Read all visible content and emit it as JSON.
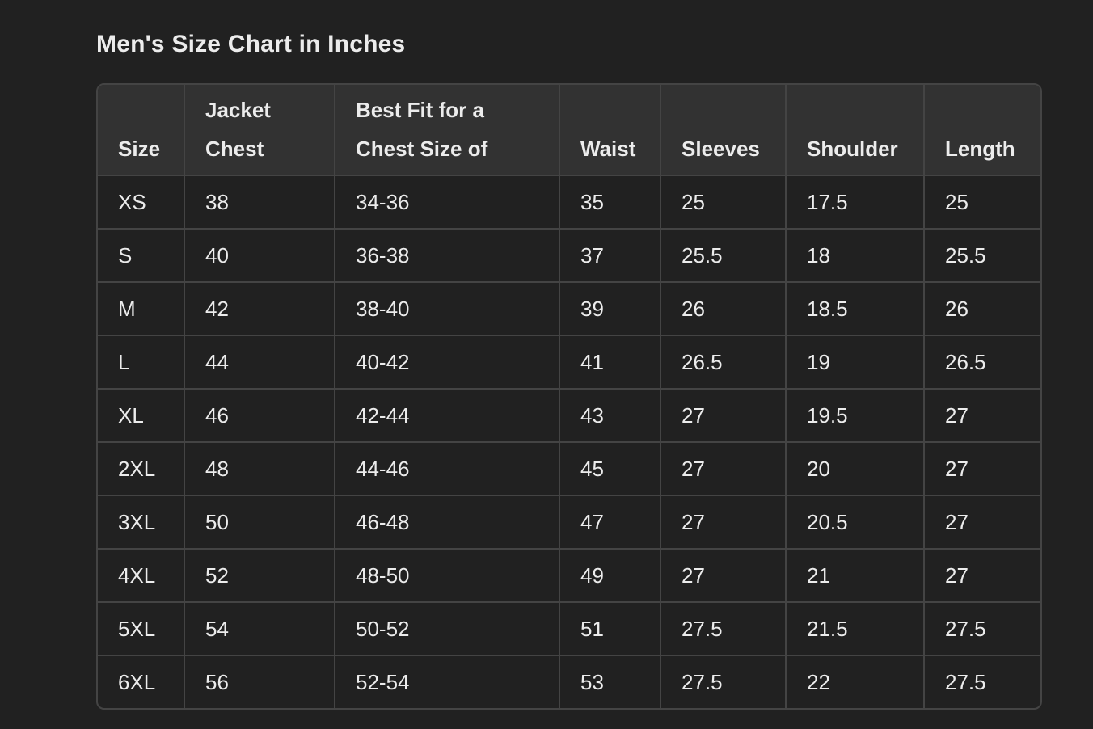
{
  "title": "Men's Size Chart in Inches",
  "headers": [
    [
      "",
      "Size"
    ],
    [
      "Jacket",
      "Chest"
    ],
    [
      "Best Fit for a",
      "Chest Size of"
    ],
    [
      "",
      "Waist"
    ],
    [
      "",
      "Sleeves"
    ],
    [
      "",
      "Shoulder"
    ],
    [
      "",
      "Length"
    ]
  ],
  "rows": [
    [
      "XS",
      "38",
      "34-36",
      "35",
      "25",
      "17.5",
      "25"
    ],
    [
      "S",
      "40",
      "36-38",
      "37",
      "25.5",
      "18",
      "25.5"
    ],
    [
      "M",
      "42",
      "38-40",
      "39",
      "26",
      "18.5",
      "26"
    ],
    [
      "L",
      "44",
      "40-42",
      "41",
      "26.5",
      "19",
      "26.5"
    ],
    [
      "XL",
      "46",
      "42-44",
      "43",
      "27",
      "19.5",
      "27"
    ],
    [
      "2XL",
      "48",
      "44-46",
      "45",
      "27",
      "20",
      "27"
    ],
    [
      "3XL",
      "50",
      "46-48",
      "47",
      "27",
      "20.5",
      "27"
    ],
    [
      "4XL",
      "52",
      "48-50",
      "49",
      "27",
      "21",
      "27"
    ],
    [
      "5XL",
      "54",
      "50-52",
      "51",
      "27.5",
      "21.5",
      "27.5"
    ],
    [
      "6XL",
      "56",
      "52-54",
      "53",
      "27.5",
      "22",
      "27.5"
    ]
  ]
}
